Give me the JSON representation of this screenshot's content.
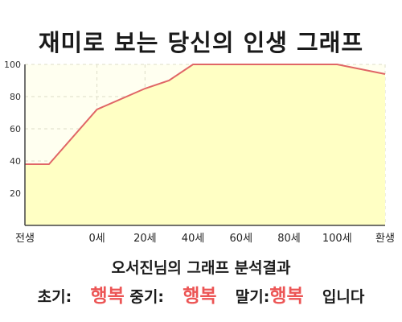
{
  "chart_data": {
    "type": "area",
    "title": "재미로 보는 당신의 인생 그래프",
    "x": [
      -20,
      0,
      20,
      30,
      40,
      60,
      80,
      100,
      120
    ],
    "y": [
      38,
      72,
      85,
      90,
      100,
      100,
      100,
      100,
      94
    ],
    "xticks": [
      {
        "x": -30,
        "label": "전생"
      },
      {
        "x": 0,
        "label": "0세"
      },
      {
        "x": 20,
        "label": "20세"
      },
      {
        "x": 40,
        "label": "40세"
      },
      {
        "x": 60,
        "label": "60세"
      },
      {
        "x": 80,
        "label": "80세"
      },
      {
        "x": 100,
        "label": "100세"
      },
      {
        "x": 120,
        "label": "환생"
      }
    ],
    "yticks": [
      20,
      40,
      60,
      80,
      100
    ],
    "xlim": [
      -20,
      120
    ],
    "ylim": [
      0,
      100
    ],
    "grid": true,
    "colors": {
      "line": "#e06666",
      "fill": "#ffffc4",
      "grid": "#dcdcc8"
    }
  },
  "result": {
    "title": "오서진님의 그래프 분석결과",
    "early_label": "초기:",
    "early_value": "행복",
    "middle_label": "중기:",
    "middle_value": "행복",
    "late_label": "말기:",
    "late_value": "행복",
    "suffix": "입니다"
  }
}
